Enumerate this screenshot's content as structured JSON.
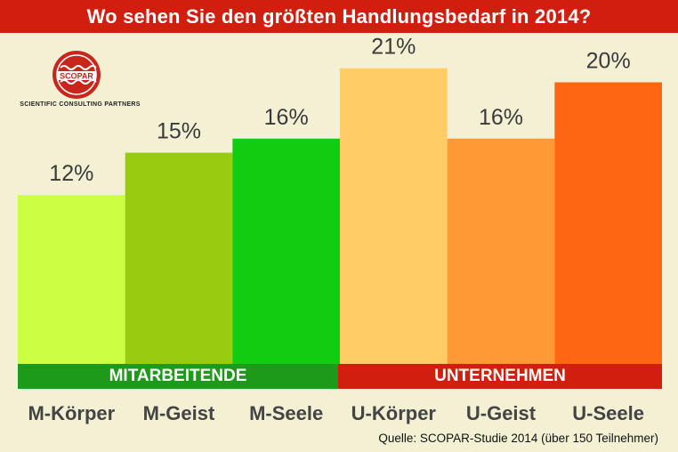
{
  "title": "Wo sehen Sie den größten Handlungsbedarf in 2014?",
  "logo": {
    "name": "SCOPAR",
    "tagline": "Scientific Consulting Partners"
  },
  "groups": [
    {
      "label": "MITARBEITENDE",
      "color": "#1d9a1a"
    },
    {
      "label": "UNTERNEHMEN",
      "color": "#d21e0f"
    }
  ],
  "source": "Quelle: SCOPAR-Studie 2014 (über 150 Teilnehmer)",
  "chart_data": {
    "type": "bar",
    "categories": [
      "M-Körper",
      "M-Geist",
      "M-Seele",
      "U-Körper",
      "U-Geist",
      "U-Seele"
    ],
    "values": [
      12,
      15,
      16,
      21,
      16,
      20
    ],
    "value_labels": [
      "12%",
      "15%",
      "16%",
      "21%",
      "16%",
      "20%"
    ],
    "colors": [
      "#ccff44",
      "#99cc11",
      "#11cc11",
      "#ffcc66",
      "#ff9933",
      "#ff6611"
    ],
    "ylim": [
      0,
      23
    ],
    "grid": false
  }
}
